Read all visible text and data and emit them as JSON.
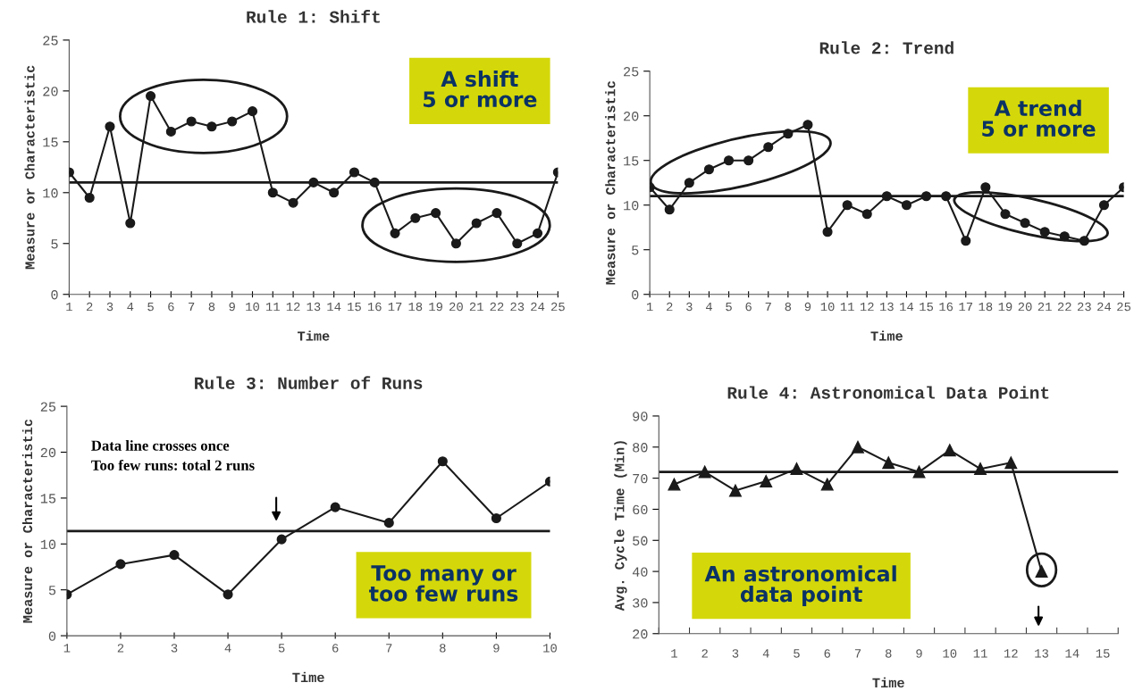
{
  "chart_data": [
    {
      "type": "line",
      "title": "Rule 1: Shift",
      "xlabel": "Time",
      "ylabel": "Measure or Characteristic",
      "marker": "circle",
      "grid": false,
      "legend": false,
      "categories": [
        "1",
        "2",
        "3",
        "4",
        "5",
        "6",
        "7",
        "8",
        "9",
        "10",
        "11",
        "12",
        "13",
        "14",
        "15",
        "16",
        "17",
        "18",
        "19",
        "20",
        "21",
        "22",
        "23",
        "24",
        "25"
      ],
      "series": [
        {
          "color": "#1a1a1a",
          "values": [
            12,
            9.5,
            16.5,
            7,
            19.5,
            16,
            17,
            16.5,
            17,
            18,
            10,
            9,
            11,
            10,
            12,
            11,
            6,
            7.5,
            8,
            5,
            7,
            8,
            5,
            6,
            12
          ]
        }
      ],
      "ylim": [
        0,
        25
      ],
      "yticks": [
        0,
        5,
        10,
        15,
        20,
        25
      ],
      "ref_lines": [
        {
          "axis": "y",
          "value": 11,
          "color": "#1a1a1a"
        }
      ],
      "annotations": [
        "A shift\n5 or more"
      ]
    },
    {
      "type": "line",
      "title": "Rule 2: Trend",
      "xlabel": "Time",
      "ylabel": "Measure or Characteristic",
      "marker": "circle",
      "grid": false,
      "legend": false,
      "categories": [
        "1",
        "2",
        "3",
        "4",
        "5",
        "6",
        "7",
        "8",
        "9",
        "10",
        "11",
        "12",
        "13",
        "14",
        "15",
        "16",
        "17",
        "18",
        "19",
        "20",
        "21",
        "22",
        "23",
        "24",
        "25"
      ],
      "series": [
        {
          "color": "#1a1a1a",
          "values": [
            12,
            9.5,
            12.5,
            14,
            15,
            15,
            16.5,
            18,
            19,
            7,
            10,
            9,
            11,
            10,
            11,
            11,
            6,
            12,
            9,
            8,
            7,
            6.5,
            6,
            10,
            12
          ]
        }
      ],
      "ylim": [
        0,
        25
      ],
      "yticks": [
        0,
        5,
        10,
        15,
        20,
        25
      ],
      "ref_lines": [
        {
          "axis": "y",
          "value": 11,
          "color": "#1a1a1a"
        }
      ],
      "annotations": [
        "A trend\n5 or more"
      ]
    },
    {
      "type": "line",
      "title": "Rule 3: Number of Runs",
      "xlabel": "Time",
      "ylabel": "Measure or Characteristic",
      "marker": "circle",
      "grid": false,
      "legend": false,
      "categories": [
        "1",
        "2",
        "3",
        "4",
        "5",
        "6",
        "7",
        "8",
        "9",
        "10"
      ],
      "series": [
        {
          "color": "#1a1a1a",
          "values": [
            4.5,
            7.8,
            8.8,
            4.5,
            10.5,
            14,
            12.3,
            19,
            12.8,
            16.8
          ]
        }
      ],
      "ylim": [
        0,
        25
      ],
      "yticks": [
        0,
        5,
        10,
        15,
        20,
        25
      ],
      "ref_lines": [
        {
          "axis": "y",
          "value": 11.4,
          "color": "#1a1a1a"
        }
      ],
      "annotations": [
        "Too many or\ntoo few runs",
        "Data line crosses once\nToo few runs: total 2 runs"
      ]
    },
    {
      "type": "line",
      "title": "Rule 4: Astronomical Data Point",
      "xlabel": "Time",
      "ylabel": "Avg. Cycle Time (Min)",
      "marker": "triangle",
      "grid": false,
      "legend": false,
      "categories": [
        "1",
        "2",
        "3",
        "4",
        "5",
        "6",
        "7",
        "8",
        "9",
        "10",
        "11",
        "12",
        "13",
        "14",
        "15"
      ],
      "series": [
        {
          "color": "#1a1a1a",
          "values": [
            68,
            72,
            66,
            69,
            73,
            68,
            80,
            75,
            72,
            79,
            73,
            75,
            40,
            null,
            null
          ]
        }
      ],
      "ylim": [
        20,
        90
      ],
      "yticks": [
        20,
        30,
        40,
        50,
        60,
        70,
        80,
        90
      ],
      "ref_lines": [
        {
          "axis": "y",
          "value": 72,
          "color": "#1a1a1a"
        }
      ],
      "annotations": [
        "An astronomical\ndata point"
      ]
    }
  ]
}
